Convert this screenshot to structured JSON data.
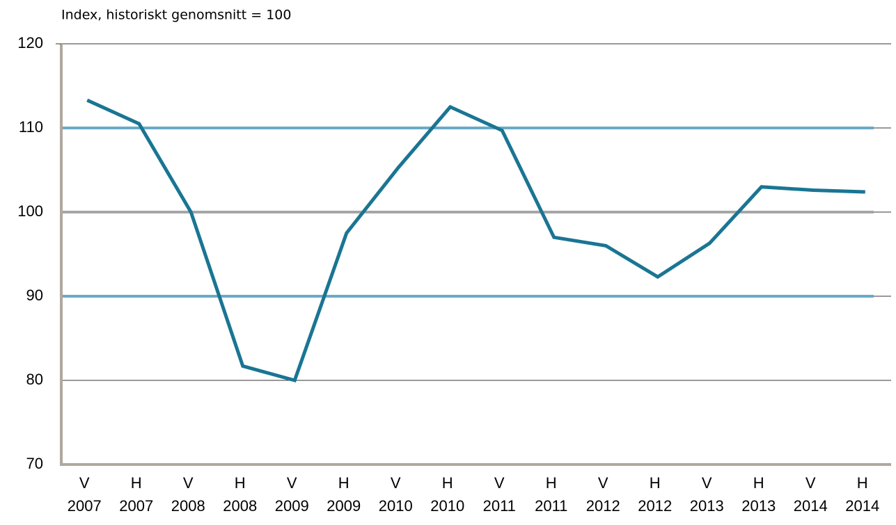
{
  "chart_data": {
    "type": "line",
    "y_axis_label": "Index, historiskt genomsnitt = 100",
    "categories": [
      [
        "V",
        "2007"
      ],
      [
        "H",
        "2007"
      ],
      [
        "V",
        "2008"
      ],
      [
        "H",
        "2008"
      ],
      [
        "V",
        "2009"
      ],
      [
        "H",
        "2009"
      ],
      [
        "V",
        "2010"
      ],
      [
        "H",
        "2010"
      ],
      [
        "V",
        "2011"
      ],
      [
        "H",
        "2011"
      ],
      [
        "V",
        "2012"
      ],
      [
        "H",
        "2012"
      ],
      [
        "V",
        "2013"
      ],
      [
        "H",
        "2013"
      ],
      [
        "V",
        "2014"
      ],
      [
        "H",
        "2014"
      ]
    ],
    "series": [
      {
        "name": "Index",
        "color": "#1a7593",
        "values": [
          113.3,
          110.5,
          100,
          81.7,
          80,
          97.5,
          105.3,
          112.5,
          109.7,
          97,
          96,
          92.3,
          96.3,
          103,
          102.6,
          102.4
        ]
      }
    ],
    "ylim": [
      70,
      120
    ],
    "yticks": [
      70,
      80,
      90,
      100,
      110,
      120
    ],
    "grid": true,
    "reference_lines": [
      {
        "value": 110,
        "color": "#6aaac6"
      },
      {
        "value": 100,
        "color": "#a6a6a6"
      },
      {
        "value": 90,
        "color": "#6aaac6"
      }
    ]
  }
}
